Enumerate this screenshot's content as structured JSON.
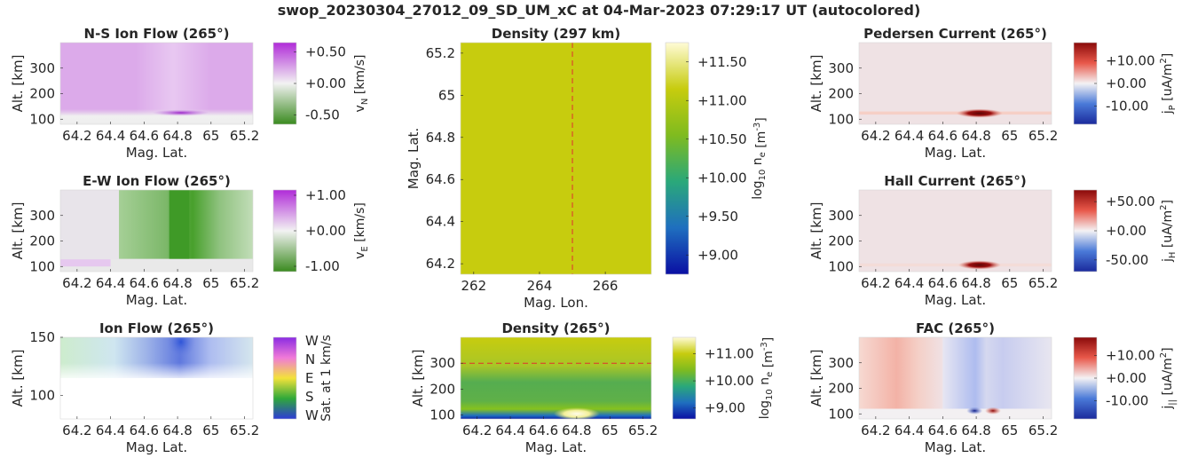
{
  "figure_title": "swop_20230304_27012_09_SD_UM_xC at 04-Mar-2023 07:29:17 UT (autocolored)",
  "chart_data": [
    {
      "id": "ns-ion-flow",
      "type": "heatmap",
      "title": "N-S Ion Flow (265°)",
      "xlabel": "Mag. Lat.",
      "ylabel": "Alt. [km]",
      "xlim": [
        64.1,
        65.25
      ],
      "ylim": [
        80,
        400
      ],
      "xticks": [
        64.2,
        64.4,
        64.6,
        64.8,
        65,
        65.2
      ],
      "xtick_labels": [
        "64.2",
        "64.4",
        "64.6",
        "64.8",
        "65",
        "65.2"
      ],
      "yticks": [
        100,
        200,
        300
      ],
      "ytick_labels": [
        "100",
        "200",
        "300"
      ],
      "features": [
        {
          "description": "uniform northward flow above ~130 km",
          "value": 0.3
        },
        {
          "description": "stronger northward flow near 64.8",
          "lat": 64.8,
          "alt": 125,
          "value": 0.5
        }
      ],
      "colorbar": {
        "label": "v",
        "label_sub": "N",
        "label_suffix": " [km/s]",
        "ticks": [
          0.5,
          0.0,
          -0.5
        ],
        "tick_labels": [
          "+0.50",
          "+0.00",
          "-0.50"
        ],
        "range": [
          -0.65,
          0.65
        ],
        "colors": [
          "#3a8a1f",
          "#f2f2f2",
          "#b02bd8"
        ]
      }
    },
    {
      "id": "ew-ion-flow",
      "type": "heatmap",
      "title": "E-W Ion Flow (265°)",
      "xlabel": "Mag. Lat.",
      "ylabel": "Alt. [km]",
      "xlim": [
        64.1,
        65.25
      ],
      "ylim": [
        80,
        400
      ],
      "xticks": [
        64.2,
        64.4,
        64.6,
        64.8,
        65,
        65.2
      ],
      "xtick_labels": [
        "64.2",
        "64.4",
        "64.6",
        "64.8",
        "65",
        "65.2"
      ],
      "yticks": [
        100,
        200,
        300
      ],
      "ytick_labels": [
        "100",
        "200",
        "300"
      ],
      "features": [
        {
          "description": "westward flow band 64.45-65.25 above ~130 km",
          "value": -0.5
        },
        {
          "description": "strongest westward flow near 64.8",
          "lat": 64.8,
          "value": -1.0
        },
        {
          "description": "weak eastward flow near 64.2 at 120 km",
          "lat": 64.2,
          "alt": 120,
          "value": 0.2
        }
      ],
      "colorbar": {
        "label": "v",
        "label_sub": "E",
        "label_suffix": " [km/s]",
        "ticks": [
          1.0,
          0.0,
          -1.0
        ],
        "tick_labels": [
          "+1.00",
          "+0.00",
          "-1.00"
        ],
        "range": [
          -1.15,
          1.15
        ],
        "colors": [
          "#3a8a1f",
          "#f2f2f2",
          "#b02bd8"
        ]
      }
    },
    {
      "id": "ion-flow-dir",
      "type": "heatmap",
      "title": "Ion Flow (265°)",
      "xlabel": "Mag. Lat.",
      "ylabel": "Alt. [km]",
      "xlim": [
        64.1,
        65.25
      ],
      "ylim": [
        80,
        150
      ],
      "xticks": [
        64.2,
        64.4,
        64.6,
        64.8,
        65,
        65.2
      ],
      "xtick_labels": [
        "64.2",
        "64.4",
        "64.6",
        "64.8",
        "65",
        "65.2"
      ],
      "yticks": [
        100,
        150
      ],
      "ytick_labels": [
        "100",
        "150"
      ],
      "features": [
        {
          "description": "northward (green) flow above ~120 km poleward edge",
          "lat": 64.2,
          "direction": "N"
        },
        {
          "description": "westward (blue) flow above ~120 km near 64.8",
          "lat": 64.8,
          "direction": "W"
        }
      ],
      "colorbar": {
        "label": "Sat. at 1 km/s",
        "tick_labels": [
          "W",
          "N",
          "E",
          "S",
          "W"
        ],
        "colors": [
          "#2e3bd6",
          "#2fa83a",
          "#f3e23a",
          "#f07ad8",
          "#8a2be2"
        ]
      }
    },
    {
      "id": "density-297km",
      "type": "heatmap",
      "title": "Density (297 km)",
      "xlabel": "Mag. Lon.",
      "ylabel": "Mag. Lat.",
      "xlim": [
        261.6,
        267.4
      ],
      "ylim": [
        64.15,
        65.25
      ],
      "xticks": [
        262,
        264,
        266
      ],
      "xtick_labels": [
        "262",
        "264",
        "266"
      ],
      "yticks": [
        64.2,
        64.4,
        64.6,
        64.8,
        65,
        65.2
      ],
      "ytick_labels": [
        "64.2",
        "64.4",
        "64.6",
        "64.8",
        "65",
        "65.2"
      ],
      "features": [
        {
          "description": "nearly uniform density",
          "value": 11.05
        }
      ],
      "marker_line": {
        "orientation": "vertical",
        "value": 265,
        "color": "#e0312f"
      },
      "colorbar": {
        "label": "log",
        "label_sub": "10",
        "label_mid": " n",
        "label_sub2": "e",
        "label_suffix": " [m",
        "label_sup": "-3",
        "label_end": "]",
        "ticks": [
          11.5,
          11.0,
          10.5,
          10.0,
          9.5,
          9.0
        ],
        "tick_labels": [
          "+11.50",
          "+11.00",
          "+10.50",
          "+10.00",
          "+9.50",
          "+9.00"
        ],
        "range": [
          8.75,
          11.75
        ],
        "colors": [
          "#0a0fa3",
          "#1f6fbf",
          "#2aa87a",
          "#7fbb1f",
          "#c7cc0e",
          "#fffbd6"
        ]
      }
    },
    {
      "id": "density-265",
      "type": "heatmap",
      "title": "Density (265°)",
      "xlabel": "Mag. Lat.",
      "ylabel": "Alt. [km]",
      "xlim": [
        64.1,
        65.25
      ],
      "ylim": [
        85,
        400
      ],
      "xticks": [
        64.2,
        64.4,
        64.6,
        64.8,
        65,
        65.2
      ],
      "xtick_labels": [
        "64.2",
        "64.4",
        "64.6",
        "64.8",
        "65",
        "65.2"
      ],
      "yticks": [
        100,
        200,
        300
      ],
      "ytick_labels": [
        "100",
        "200",
        "300"
      ],
      "features": [
        {
          "description": "high density above ~250 km",
          "value": 11.0
        },
        {
          "description": "band of lower density 150-200 km",
          "value": 10.3
        },
        {
          "description": "low density near 95 km",
          "value": 9.0
        },
        {
          "description": "peak density near 64.8 at 105 km",
          "lat": 64.8,
          "alt": 105,
          "value": 11.5
        }
      ],
      "marker_line": {
        "orientation": "horizontal",
        "value": 300,
        "color": "#e0312f"
      },
      "colorbar": {
        "label": "log",
        "label_sub": "10",
        "label_mid": " n",
        "label_sub2": "e",
        "label_suffix": " [m",
        "label_sup": "-3",
        "label_end": "]",
        "ticks": [
          11.0,
          10.0,
          9.0
        ],
        "tick_labels": [
          "+11.00",
          "+10.00",
          "+9.00"
        ],
        "range": [
          8.6,
          11.6
        ],
        "colors": [
          "#0a0fa3",
          "#1f6fbf",
          "#2aa87a",
          "#7fbb1f",
          "#c7cc0e",
          "#fffbd6"
        ]
      }
    },
    {
      "id": "pedersen-current",
      "type": "heatmap",
      "title": "Pedersen Current (265°)",
      "xlabel": "Mag. Lat.",
      "ylabel": "Alt. [km]",
      "xlim": [
        64.1,
        65.25
      ],
      "ylim": [
        80,
        400
      ],
      "xticks": [
        64.2,
        64.4,
        64.6,
        64.8,
        65,
        65.2
      ],
      "xtick_labels": [
        "64.2",
        "64.4",
        "64.6",
        "64.8",
        "65",
        "65.2"
      ],
      "yticks": [
        100,
        200,
        300
      ],
      "ytick_labels": [
        "100",
        "200",
        "300"
      ],
      "features": [
        {
          "description": "weak current layer at 125 km",
          "alt": 125,
          "value": 2
        },
        {
          "description": "strong current near 64.8",
          "lat": 64.8,
          "alt": 120,
          "value": 16
        }
      ],
      "colorbar": {
        "label": "j",
        "label_sub": "P",
        "label_suffix": " [uA/m",
        "label_sup": "2",
        "label_end": "]",
        "ticks": [
          10,
          0,
          -10
        ],
        "tick_labels": [
          "+10.00",
          "+0.00",
          "-10.00"
        ],
        "range": [
          -18,
          18
        ],
        "colors": [
          "#1b2a9c",
          "#4a7ad8",
          "#f4f2f4",
          "#e8584a",
          "#8a0a0a"
        ]
      }
    },
    {
      "id": "hall-current",
      "type": "heatmap",
      "title": "Hall Current (265°)",
      "xlabel": "Mag. Lat.",
      "ylabel": "Alt. [km]",
      "xlim": [
        64.1,
        65.25
      ],
      "ylim": [
        80,
        400
      ],
      "xticks": [
        64.2,
        64.4,
        64.6,
        64.8,
        65,
        65.2
      ],
      "xtick_labels": [
        "64.2",
        "64.4",
        "64.6",
        "64.8",
        "65",
        "65.2"
      ],
      "yticks": [
        100,
        200,
        300
      ],
      "ytick_labels": [
        "100",
        "200",
        "300"
      ],
      "features": [
        {
          "description": "strong current near 64.8",
          "lat": 64.8,
          "alt": 105,
          "value": 60
        }
      ],
      "colorbar": {
        "label": "j",
        "label_sub": "H",
        "label_suffix": " [uA/m",
        "label_sup": "2",
        "label_end": "]",
        "ticks": [
          50,
          0,
          -50
        ],
        "tick_labels": [
          "+50.00",
          "+0.00",
          "-50.00"
        ],
        "range": [
          -70,
          70
        ],
        "colors": [
          "#1b2a9c",
          "#4a7ad8",
          "#f4f2f4",
          "#e8584a",
          "#8a0a0a"
        ]
      }
    },
    {
      "id": "fac",
      "type": "heatmap",
      "title": "FAC (265°)",
      "xlabel": "Mag. Lat.",
      "ylabel": "Alt. [km]",
      "xlim": [
        64.1,
        65.25
      ],
      "ylim": [
        80,
        400
      ],
      "xticks": [
        64.2,
        64.4,
        64.6,
        64.8,
        65,
        65.2
      ],
      "xtick_labels": [
        "64.2",
        "64.4",
        "64.6",
        "64.8",
        "65",
        "65.2"
      ],
      "yticks": [
        100,
        200,
        300
      ],
      "ytick_labels": [
        "100",
        "200",
        "300"
      ],
      "features": [
        {
          "description": "upward/downward current sheets above ~120 km",
          "value": 3
        },
        {
          "description": "negative current near 64.8 at 110 km",
          "lat": 64.8,
          "alt": 110,
          "value": -16
        },
        {
          "description": "positive current near 64.9 at 110 km",
          "lat": 64.9,
          "alt": 110,
          "value": 16
        }
      ],
      "colorbar": {
        "label": "j",
        "label_sub": "||",
        "label_suffix": " [uA/m",
        "label_sup": "2",
        "label_end": "]",
        "ticks": [
          10,
          0,
          -10
        ],
        "tick_labels": [
          "+10.00",
          "+0.00",
          "-10.00"
        ],
        "range": [
          -18,
          18
        ],
        "colors": [
          "#1b2a9c",
          "#4a7ad8",
          "#f4f2f4",
          "#e8584a",
          "#8a0a0a"
        ]
      }
    }
  ]
}
